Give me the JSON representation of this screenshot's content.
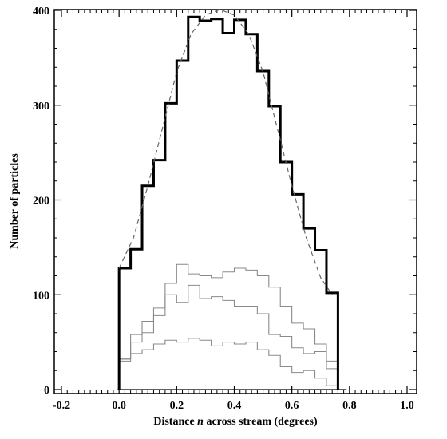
{
  "chart_data": {
    "type": "histogram",
    "title": "",
    "xlabel_prefix": "Distance ",
    "xlabel_var": "n",
    "xlabel_suffix": " across stream (degrees)",
    "ylabel": "Number of particles",
    "xlim": [
      -0.2,
      1.0
    ],
    "ylim": [
      0,
      400
    ],
    "xticks": [
      "-0.2",
      "0.0",
      "0.2",
      "0.4",
      "0.6",
      "0.8",
      "1.0"
    ],
    "yticks": [
      "0",
      "100",
      "200",
      "300",
      "400"
    ],
    "bin_edges": [
      0.0,
      0.04,
      0.08,
      0.12,
      0.16,
      0.2,
      0.24,
      0.28,
      0.32,
      0.36,
      0.4,
      0.44,
      0.48,
      0.52,
      0.56,
      0.6,
      0.64,
      0.68,
      0.72,
      0.76
    ],
    "series": [
      {
        "style": "thick-black",
        "values": [
          128,
          148,
          215,
          242,
          302,
          347,
          393,
          389,
          391,
          376,
          390,
          375,
          336,
          299,
          240,
          206,
          170,
          147,
          102
        ]
      },
      {
        "style": "thin-gray",
        "values": [
          32,
          58,
          72,
          86,
          112,
          132,
          122,
          120,
          118,
          124,
          128,
          126,
          120,
          108,
          88,
          70,
          64,
          48,
          30
        ]
      },
      {
        "style": "thin-gray",
        "values": [
          33,
          50,
          60,
          78,
          100,
          92,
          110,
          96,
          98,
          94,
          88,
          88,
          80,
          58,
          56,
          44,
          38,
          40,
          22
        ]
      },
      {
        "style": "thin-gray",
        "values": [
          30,
          38,
          42,
          48,
          52,
          50,
          54,
          52,
          46,
          50,
          48,
          50,
          42,
          36,
          24,
          18,
          20,
          12,
          4
        ]
      }
    ],
    "fit": {
      "style": "dashed",
      "points": [
        [
          0.0,
          128
        ],
        [
          0.05,
          160
        ],
        [
          0.1,
          215
        ],
        [
          0.15,
          275
        ],
        [
          0.2,
          335
        ],
        [
          0.25,
          375
        ],
        [
          0.3,
          395
        ],
        [
          0.35,
          401
        ],
        [
          0.4,
          395
        ],
        [
          0.45,
          375
        ],
        [
          0.5,
          335
        ],
        [
          0.55,
          275
        ],
        [
          0.6,
          215
        ],
        [
          0.65,
          160
        ],
        [
          0.7,
          118
        ],
        [
          0.74,
          100
        ]
      ]
    }
  }
}
